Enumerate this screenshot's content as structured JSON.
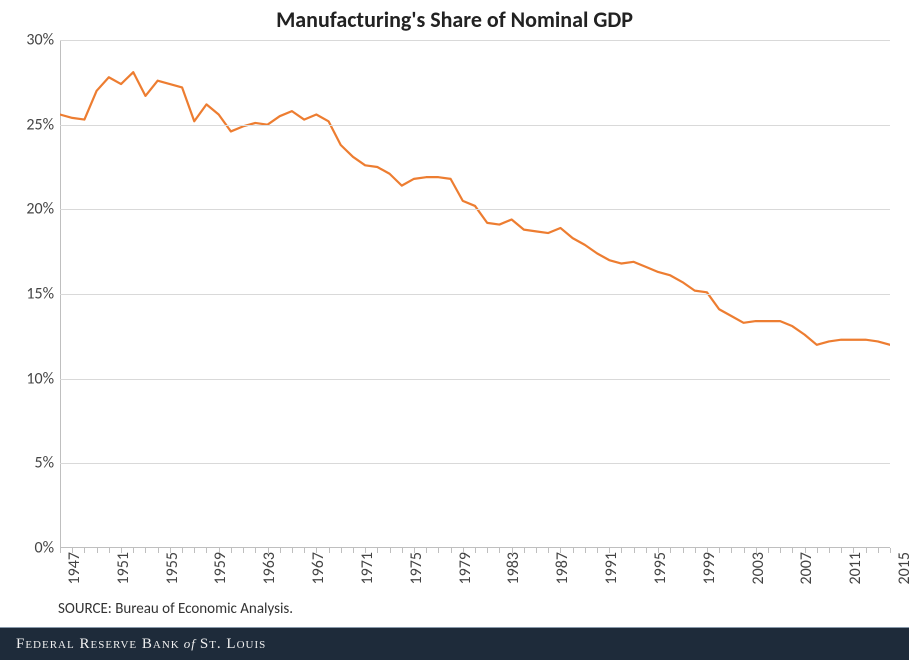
{
  "chart": {
    "type": "line",
    "title": "Manufacturing's Share of Nominal GDP",
    "title_fontsize": 22,
    "title_color": "#222222",
    "background_color": "#ffffff",
    "grid_color": "#d9d9d9",
    "axis_color": "#bfbfbf",
    "line_color": "#ed7d31",
    "line_width": 2.2,
    "ylim": [
      0,
      30
    ],
    "ytick_step": 5,
    "ytick_suffix": "%",
    "xlim": [
      1947,
      2015
    ],
    "xtick_step": 4,
    "xtick_rotation": -90,
    "tick_fontsize": 16,
    "tick_color": "#444444",
    "years": [
      1947,
      1948,
      1949,
      1950,
      1951,
      1952,
      1953,
      1954,
      1955,
      1956,
      1957,
      1958,
      1959,
      1960,
      1961,
      1962,
      1963,
      1964,
      1965,
      1966,
      1967,
      1968,
      1969,
      1970,
      1971,
      1972,
      1973,
      1974,
      1975,
      1976,
      1977,
      1978,
      1979,
      1980,
      1981,
      1982,
      1983,
      1984,
      1985,
      1986,
      1987,
      1988,
      1989,
      1990,
      1991,
      1992,
      1993,
      1994,
      1995,
      1996,
      1997,
      1998,
      1999,
      2000,
      2001,
      2002,
      2003,
      2004,
      2005,
      2006,
      2007,
      2008,
      2009,
      2010,
      2011,
      2012,
      2013,
      2014,
      2015
    ],
    "values": [
      25.6,
      25.4,
      25.3,
      27.0,
      27.8,
      27.4,
      28.1,
      26.7,
      27.6,
      27.4,
      27.2,
      25.2,
      26.2,
      25.6,
      24.6,
      24.9,
      25.1,
      25.0,
      25.5,
      25.8,
      25.3,
      25.6,
      25.2,
      23.8,
      23.1,
      22.6,
      22.5,
      22.1,
      21.4,
      21.8,
      21.9,
      21.9,
      21.8,
      20.5,
      20.2,
      19.2,
      19.1,
      19.4,
      18.8,
      18.7,
      18.6,
      18.9,
      18.3,
      17.9,
      17.4,
      17.0,
      16.8,
      16.9,
      16.6,
      16.3,
      16.1,
      15.7,
      15.2,
      15.1,
      14.1,
      13.7,
      13.3,
      13.4,
      13.4,
      13.4,
      13.1,
      12.6,
      12.0,
      12.2,
      12.3,
      12.3,
      12.3,
      12.2,
      12.0
    ]
  },
  "source": {
    "label": "SOURCE: Bureau of Economic Analysis.",
    "fontsize": 15,
    "color": "#333333"
  },
  "footer": {
    "text_before": "Federal Reserve Bank",
    "of": "of",
    "text_after": "St. Louis",
    "background_color": "#1e2b3a",
    "text_color": "#f0f0f0",
    "fontsize": 15
  }
}
